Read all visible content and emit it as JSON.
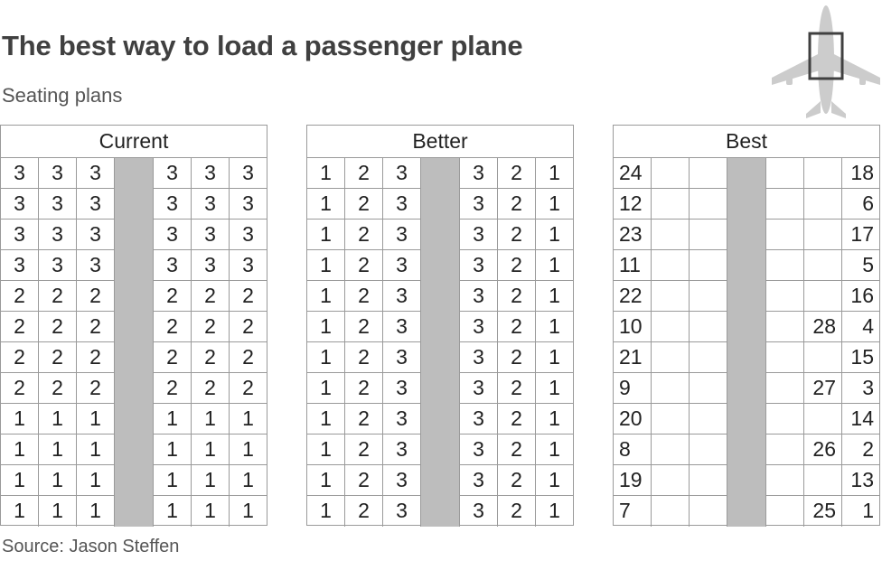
{
  "header": {
    "title": "The best way to load a passenger plane",
    "subtitle": "Seating plans"
  },
  "footer": {
    "source": "Source: Jason Steffen"
  },
  "icons": {
    "plane": "plane-icon"
  },
  "colors": {
    "aisle": "#bdbdbd",
    "grid": "#9a9a9a",
    "plane": "#cccccc",
    "highlight": "#404040"
  },
  "panels": [
    {
      "label": "Current",
      "rows": [
        [
          "3",
          "3",
          "3",
          "3",
          "3",
          "3"
        ],
        [
          "3",
          "3",
          "3",
          "3",
          "3",
          "3"
        ],
        [
          "3",
          "3",
          "3",
          "3",
          "3",
          "3"
        ],
        [
          "3",
          "3",
          "3",
          "3",
          "3",
          "3"
        ],
        [
          "2",
          "2",
          "2",
          "2",
          "2",
          "2"
        ],
        [
          "2",
          "2",
          "2",
          "2",
          "2",
          "2"
        ],
        [
          "2",
          "2",
          "2",
          "2",
          "2",
          "2"
        ],
        [
          "2",
          "2",
          "2",
          "2",
          "2",
          "2"
        ],
        [
          "1",
          "1",
          "1",
          "1",
          "1",
          "1"
        ],
        [
          "1",
          "1",
          "1",
          "1",
          "1",
          "1"
        ],
        [
          "1",
          "1",
          "1",
          "1",
          "1",
          "1"
        ],
        [
          "1",
          "1",
          "1",
          "1",
          "1",
          "1"
        ]
      ]
    },
    {
      "label": "Better",
      "rows": [
        [
          "1",
          "2",
          "3",
          "3",
          "2",
          "1"
        ],
        [
          "1",
          "2",
          "3",
          "3",
          "2",
          "1"
        ],
        [
          "1",
          "2",
          "3",
          "3",
          "2",
          "1"
        ],
        [
          "1",
          "2",
          "3",
          "3",
          "2",
          "1"
        ],
        [
          "1",
          "2",
          "3",
          "3",
          "2",
          "1"
        ],
        [
          "1",
          "2",
          "3",
          "3",
          "2",
          "1"
        ],
        [
          "1",
          "2",
          "3",
          "3",
          "2",
          "1"
        ],
        [
          "1",
          "2",
          "3",
          "3",
          "2",
          "1"
        ],
        [
          "1",
          "2",
          "3",
          "3",
          "2",
          "1"
        ],
        [
          "1",
          "2",
          "3",
          "3",
          "2",
          "1"
        ],
        [
          "1",
          "2",
          "3",
          "3",
          "2",
          "1"
        ],
        [
          "1",
          "2",
          "3",
          "3",
          "2",
          "1"
        ]
      ]
    },
    {
      "label": "Best",
      "rows": [
        [
          "24",
          "",
          "",
          "",
          "",
          "18"
        ],
        [
          "12",
          "",
          "",
          "",
          "",
          "6"
        ],
        [
          "23",
          "",
          "",
          "",
          "",
          "17"
        ],
        [
          "11",
          "",
          "",
          "",
          "",
          "5"
        ],
        [
          "22",
          "",
          "",
          "",
          "",
          "16"
        ],
        [
          "10",
          "",
          "",
          "",
          "28",
          "4"
        ],
        [
          "21",
          "",
          "",
          "",
          "",
          "15"
        ],
        [
          "9",
          "",
          "",
          "",
          "27",
          "3"
        ],
        [
          "20",
          "",
          "",
          "",
          "",
          "14"
        ],
        [
          "8",
          "",
          "",
          "",
          "26",
          "2"
        ],
        [
          "19",
          "",
          "",
          "",
          "",
          "13"
        ],
        [
          "7",
          "",
          "",
          "",
          "25",
          "1"
        ]
      ]
    }
  ]
}
